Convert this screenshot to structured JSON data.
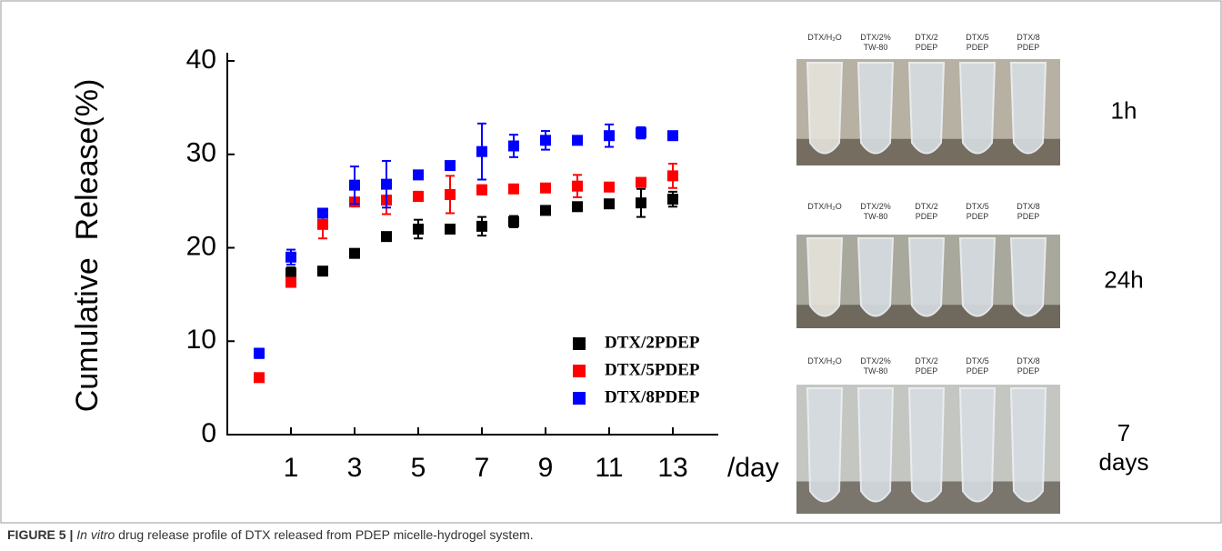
{
  "chart_data": {
    "type": "scatter",
    "y_label": "Cumulative  Release(%)",
    "x_label": "/day",
    "x": [
      0,
      1,
      2,
      3,
      4,
      5,
      6,
      7,
      8,
      9,
      10,
      11,
      12,
      13
    ],
    "series": [
      {
        "name": "DTX/2PDEP",
        "color": "#000000",
        "values": [
          null,
          17.3,
          17.5,
          19.4,
          21.2,
          22.0,
          22.0,
          22.3,
          22.8,
          24.0,
          24.4,
          24.7,
          24.8,
          25.2
        ],
        "errors": [
          null,
          0.6,
          0.3,
          0.3,
          0.3,
          1.0,
          0.3,
          1.0,
          0.6,
          0.3,
          0.3,
          0.3,
          1.5,
          0.8
        ]
      },
      {
        "name": "DTX/5PDEP",
        "color": "#ff0000",
        "values": [
          6.1,
          16.3,
          22.5,
          24.9,
          25.1,
          25.5,
          25.7,
          26.2,
          26.3,
          26.4,
          26.6,
          26.5,
          27.0,
          27.7
        ],
        "errors": [
          0.3,
          0.3,
          1.5,
          0.3,
          1.5,
          0.5,
          2.0,
          0.5,
          0.3,
          0.3,
          1.2,
          0.3,
          0.3,
          1.3
        ]
      },
      {
        "name": "DTX/8PDEP",
        "color": "#0000ff",
        "values": [
          8.7,
          19.0,
          23.7,
          26.7,
          26.8,
          27.8,
          28.8,
          30.3,
          30.9,
          31.5,
          31.5,
          32.0,
          32.3,
          32.0
        ],
        "errors": [
          0.5,
          0.8,
          0.3,
          2.0,
          2.5,
          0.3,
          0.3,
          3.0,
          1.2,
          1.0,
          0.3,
          1.2,
          0.6,
          0.3
        ]
      }
    ],
    "xlim": [
      -1,
      14.5
    ],
    "xticks": [
      1,
      3,
      5,
      7,
      9,
      11,
      13
    ],
    "ylim": [
      0,
      40
    ],
    "yticks": [
      0,
      10,
      20,
      30,
      40
    ],
    "grid": false,
    "legend": "lower right"
  },
  "photos": {
    "columns": [
      [
        "DTX/H₂O"
      ],
      [
        "DTX/2%",
        "TW-80"
      ],
      [
        "DTX/2",
        "PDEP"
      ],
      [
        "DTX/5",
        "PDEP"
      ],
      [
        "DTX/8",
        "PDEP"
      ]
    ],
    "times": [
      [
        "1h"
      ],
      [
        "24h"
      ],
      [
        "7",
        "days"
      ]
    ]
  },
  "caption": {
    "label": "FIGURE 5 |",
    "emphasis": "In vitro",
    "text": "drug release profile of DTX released from PDEP micelle-hydrogel system."
  }
}
